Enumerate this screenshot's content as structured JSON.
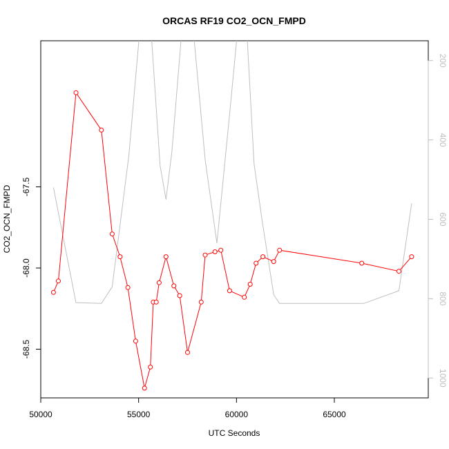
{
  "chart_data": {
    "type": "line",
    "title": "ORCAS RF19 CO2_OCN_FMPD",
    "xlabel": "UTC Seconds",
    "ylabel": "CO2_OCN_FMPD",
    "xlim": [
      50000,
      69800
    ],
    "ylim": [
      -68.8,
      -66.6
    ],
    "y2lim": [
      1050,
      150
    ],
    "x_ticks": [
      50000,
      55000,
      60000,
      65000
    ],
    "y_ticks": [
      -67.5,
      -68.0,
      -68.5
    ],
    "y_tick_labels": [
      "-67.5",
      "-68.0",
      "-68.5"
    ],
    "y2_ticks": [
      200,
      400,
      600,
      800,
      1000
    ],
    "grid": false,
    "legend": "none",
    "series": [
      {
        "color": "#ff0000",
        "marker": "open-circle",
        "x": [
          50650,
          50900,
          51800,
          53100,
          53650,
          54050,
          54450,
          54850,
          55300,
          55600,
          55750,
          55900,
          56050,
          56400,
          56800,
          57100,
          57500,
          58200,
          58400,
          58900,
          59200,
          59650,
          60400,
          60700,
          61000,
          61350,
          61900,
          62200,
          66400,
          68300,
          68950
        ],
        "values": [
          -68.15,
          -68.08,
          -66.92,
          -67.15,
          -67.79,
          -67.93,
          -68.12,
          -68.45,
          -68.74,
          -68.61,
          -68.21,
          -68.21,
          -68.09,
          -67.93,
          -68.11,
          -68.17,
          -68.52,
          -68.21,
          -67.92,
          -67.9,
          -67.89,
          -68.14,
          -68.18,
          -68.1,
          -67.97,
          -67.93,
          -67.96,
          -67.89,
          -67.97,
          -68.02,
          -67.93
        ]
      },
      {
        "color": "#bebebe",
        "axis": "right",
        "x": [
          50650,
          51800,
          53100,
          53650,
          54500,
          55100,
          55600,
          56100,
          56400,
          56700,
          57250,
          57750,
          58400,
          59000,
          59700,
          60100,
          60500,
          60900,
          61300,
          61900,
          62200,
          66500,
          68300,
          68950
        ],
        "values": [
          520,
          810,
          812,
          770,
          440,
          100,
          100,
          465,
          550,
          430,
          100,
          100,
          450,
          660,
          310,
          100,
          100,
          460,
          600,
          790,
          812,
          812,
          780,
          560
        ]
      }
    ]
  }
}
